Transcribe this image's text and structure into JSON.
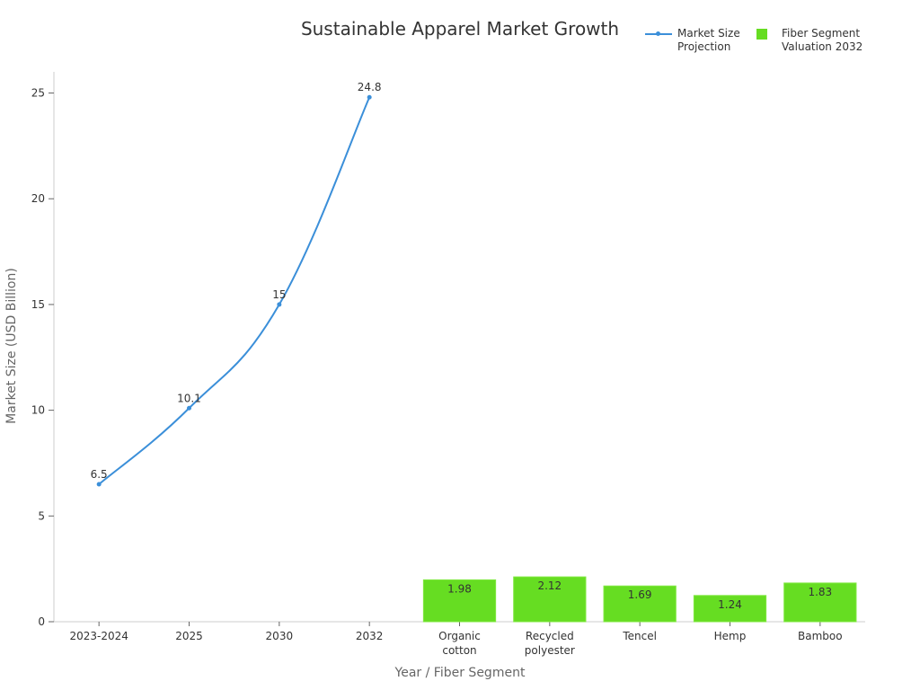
{
  "chart_data": {
    "type": "bar+line",
    "title": "Sustainable Apparel Market Growth",
    "xlabel": "Year / Fiber Segment",
    "ylabel": "Market Size (USD Billion)",
    "ylim": [
      0,
      26
    ],
    "yticks": [
      0,
      5,
      10,
      15,
      20,
      25
    ],
    "categories": [
      "2023-2024",
      "2025",
      "2030",
      "2032",
      "Organic\ncotton",
      "Recycled\npolyester",
      "Tencel",
      "Hemp",
      "Bamboo"
    ],
    "series": [
      {
        "name": "Market Size\nProjection",
        "type": "line",
        "color": "#3b8fd9",
        "x": [
          "2023-2024",
          "2025",
          "2030",
          "2032"
        ],
        "values": [
          6.5,
          10.1,
          15,
          24.8
        ],
        "labels": [
          "6.5",
          "10.1",
          "15",
          "24.8"
        ]
      },
      {
        "name": "Fiber Segment\nValuation 2032",
        "type": "bar",
        "color": "#66dd22",
        "x": [
          "Organic\ncotton",
          "Recycled\npolyester",
          "Tencel",
          "Hemp",
          "Bamboo"
        ],
        "values": [
          1.98,
          2.12,
          1.69,
          1.24,
          1.83
        ],
        "labels": [
          "1.98",
          "2.12",
          "1.69",
          "1.24",
          "1.83"
        ]
      }
    ],
    "legend_position": "top-right",
    "grid": false
  }
}
